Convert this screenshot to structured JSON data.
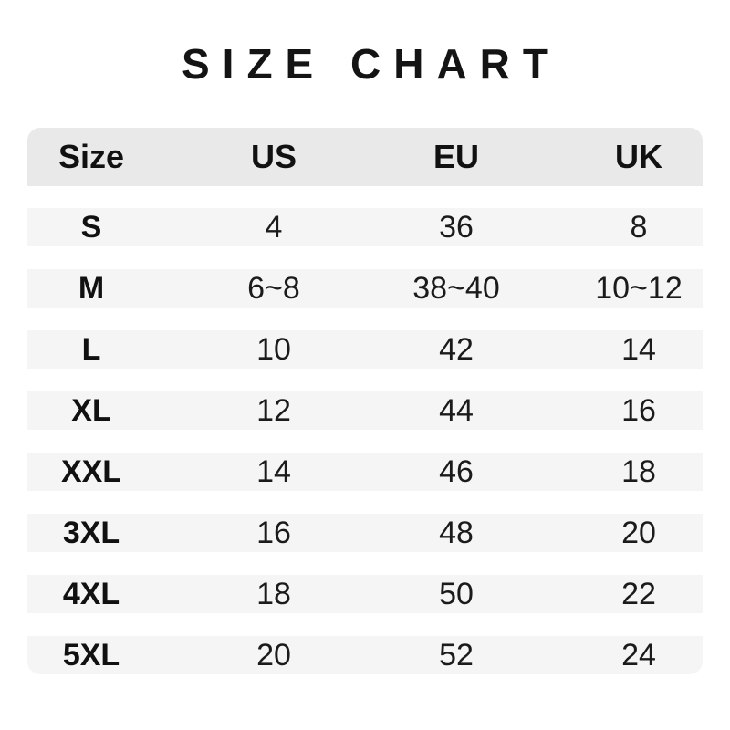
{
  "title": "SIZE CHART",
  "chart_data": {
    "type": "table",
    "title": "SIZE CHART",
    "columns": [
      "Size",
      "US",
      "EU",
      "UK"
    ],
    "rows": [
      [
        "S",
        "4",
        "36",
        "8"
      ],
      [
        "M",
        "6~8",
        "38~40",
        "10~12"
      ],
      [
        "L",
        "10",
        "42",
        "14"
      ],
      [
        "XL",
        "12",
        "44",
        "16"
      ],
      [
        "XXL",
        "14",
        "46",
        "18"
      ],
      [
        "3XL",
        "16",
        "48",
        "20"
      ],
      [
        "4XL",
        "18",
        "50",
        "22"
      ],
      [
        "5XL",
        "20",
        "52",
        "24"
      ]
    ]
  },
  "colors": {
    "header_bg": "#e9e9e9",
    "row_bg": "#f5f5f5",
    "text": "#1b1b1b",
    "background": "#ffffff"
  }
}
